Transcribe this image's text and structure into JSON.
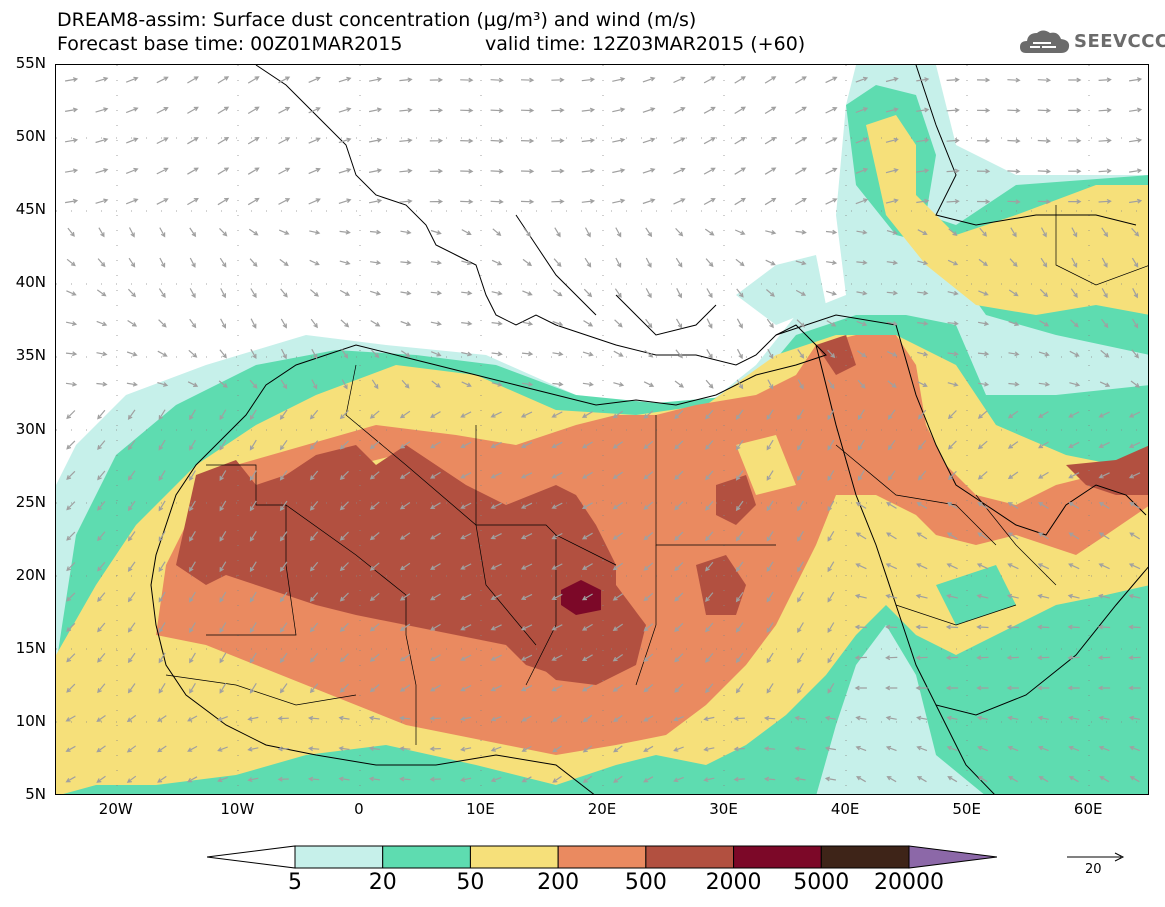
{
  "header": {
    "title_line1": "DREAM8-assim: Surface dust concentration (µg/m³) and wind (m/s)",
    "title_line2": "Forecast base time: 00Z01MAR2015",
    "valid_time": "valid time: 12Z03MAR2015 (+60)"
  },
  "logo": {
    "text": "SEEVCCC",
    "icon": "cloud-logo-icon"
  },
  "map": {
    "lat_labels": [
      "55N",
      "50N",
      "45N",
      "40N",
      "35N",
      "30N",
      "25N",
      "20N",
      "15N",
      "10N",
      "5N"
    ],
    "lon_labels": [
      "20W",
      "10W",
      "0",
      "10E",
      "20E",
      "30E",
      "40E",
      "50E",
      "60E"
    ],
    "lat_range": [
      5,
      55
    ],
    "lon_range": [
      -25,
      65
    ],
    "grid": "dotted",
    "wind_arrow_color": "#a0a0a0",
    "coastline_color": "#000000"
  },
  "colorbar": {
    "labels": [
      "5",
      "20",
      "50",
      "200",
      "500",
      "2000",
      "5000",
      "20000"
    ],
    "colors": [
      "#c6f0ea",
      "#5edcb0",
      "#f6e07a",
      "#ea8a60",
      "#b25040",
      "#7c0828",
      "#3e2418",
      "#8c68a8"
    ],
    "extend": "both"
  },
  "wind_reference": {
    "label": "20"
  }
}
